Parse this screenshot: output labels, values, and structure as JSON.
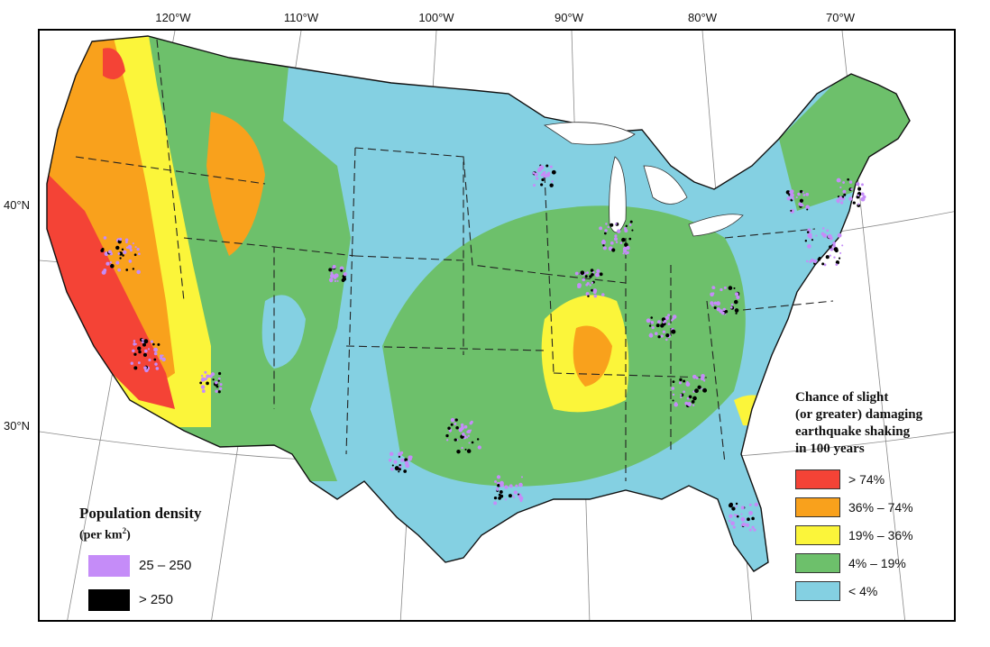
{
  "map": {
    "longitude_labels": [
      "120°W",
      "110°W",
      "100°W",
      "90°W",
      "80°W",
      "70°W"
    ],
    "latitude_labels": [
      "40°N",
      "30°N"
    ]
  },
  "hazard_legend": {
    "title_lines": [
      "Chance of slight",
      "(or greater) damaging",
      "earthquake shaking",
      "in 100 years"
    ],
    "classes": [
      {
        "label": "> 74%",
        "color": "#f44336"
      },
      {
        "label": "36% – 74%",
        "color": "#f9a11c"
      },
      {
        "label": "19% – 36%",
        "color": "#fbf53a"
      },
      {
        "label": "4% – 19%",
        "color": "#6dc06b"
      },
      {
        "label": "< 4%",
        "color": "#84d0e2"
      }
    ]
  },
  "population_legend": {
    "title": "Population density",
    "subtitle_prefix": "(per km",
    "subtitle_exponent": "2",
    "subtitle_suffix": ")",
    "classes": [
      {
        "label": "25 – 250",
        "color": "#c58cf8"
      },
      {
        "label": "> 250",
        "color": "#000000"
      }
    ]
  }
}
